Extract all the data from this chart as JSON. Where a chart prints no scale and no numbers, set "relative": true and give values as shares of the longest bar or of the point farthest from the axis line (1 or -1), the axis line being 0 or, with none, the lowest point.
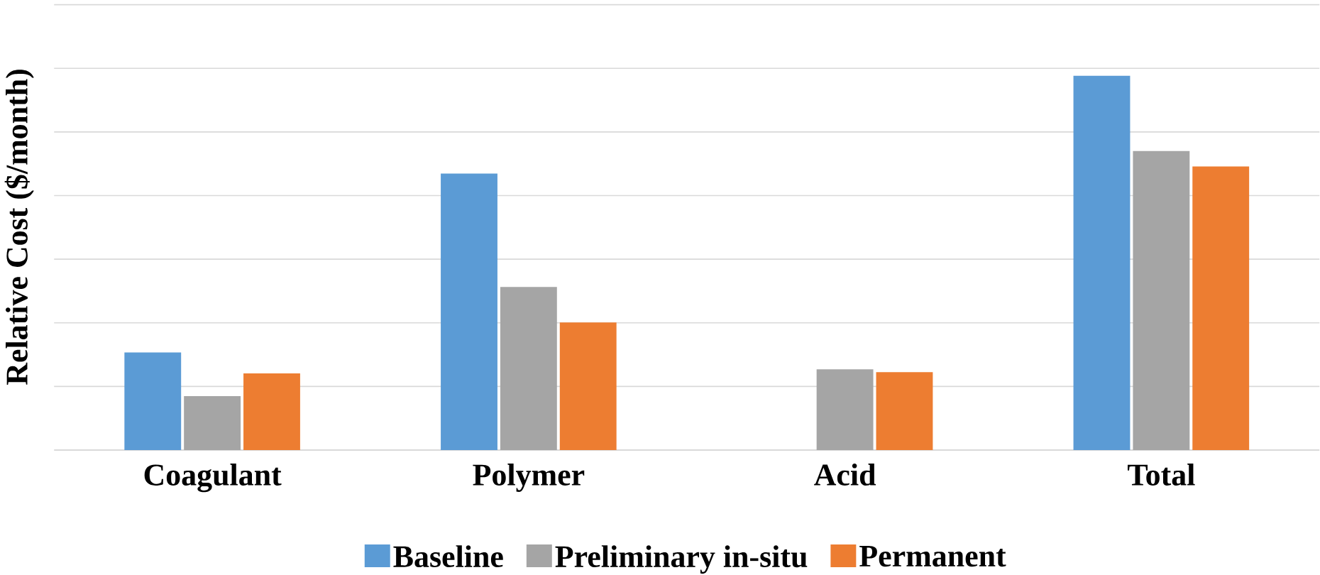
{
  "chart_data": {
    "type": "bar",
    "ylabel": "Relative Cost ($/month)",
    "relative": true,
    "grid": "y",
    "legend": "bottom",
    "categories": [
      "Coagulant",
      "Polymer",
      "Acid",
      "Total"
    ],
    "series": [
      {
        "name": "Baseline",
        "color": "#5b9bd5",
        "values": [
          0.261,
          0.739,
          null,
          1
        ]
      },
      {
        "name": "Preliminary in-situ",
        "color": "#a5a5a5",
        "values": [
          0.144,
          0.436,
          0.216,
          0.799
        ]
      },
      {
        "name": "Permanent",
        "color": "#ed7d31",
        "values": [
          0.205,
          0.341,
          0.208,
          0.758
        ]
      }
    ]
  }
}
